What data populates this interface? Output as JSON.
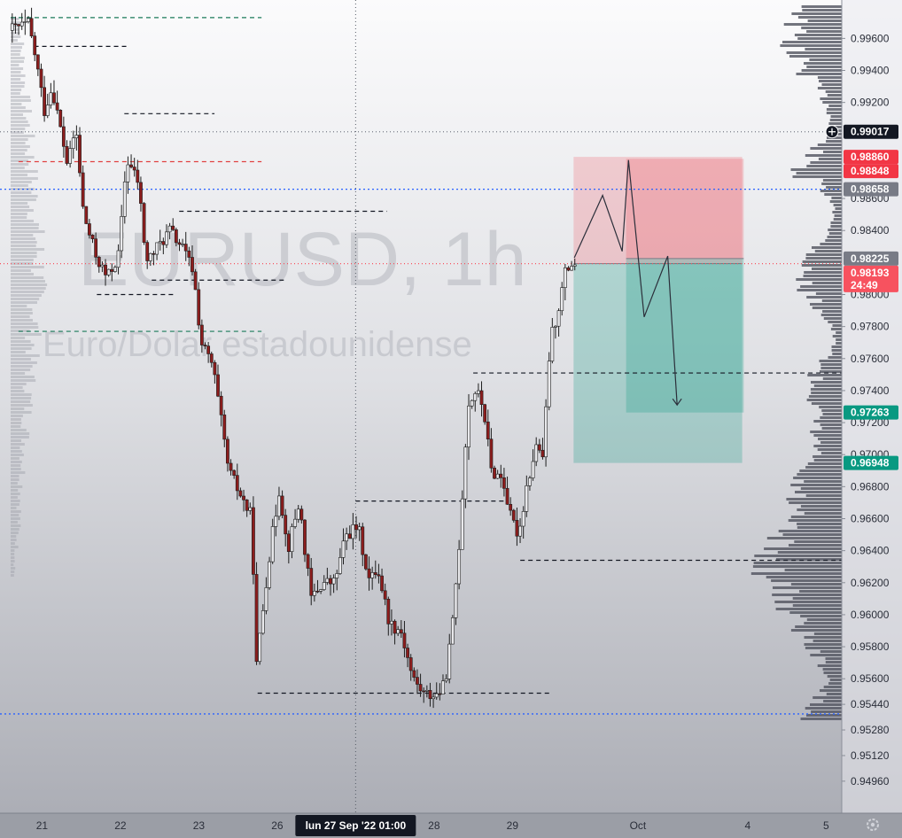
{
  "chart_data": {
    "type": "candlestick",
    "watermark": {
      "symbol": "EURUSD, 1h",
      "name": "Euro/Dolar estadounidense"
    },
    "y_axis": {
      "ylim": [
        0.948,
        0.999
      ],
      "ticks": [
        "0.99600",
        "0.99400",
        "0.99200",
        "0.98600",
        "0.98400",
        "0.98000",
        "0.97800",
        "0.97600",
        "0.97400",
        "0.97200",
        "0.97000",
        "0.96800",
        "0.96600",
        "0.96400",
        "0.96200",
        "0.96000",
        "0.95800",
        "0.95600",
        "0.95440",
        "0.95280",
        "0.95120",
        "0.94960"
      ]
    },
    "x_axis": {
      "labels": [
        {
          "label": "21",
          "t": 0.4
        },
        {
          "label": "22",
          "t": 1.4
        },
        {
          "label": "23",
          "t": 2.4
        },
        {
          "label": "26",
          "t": 3.4
        },
        {
          "label": "28",
          "t": 5.4
        },
        {
          "label": "29",
          "t": 6.4
        },
        {
          "label": "Oct",
          "t": 8.0
        },
        {
          "label": "4",
          "t": 9.4
        },
        {
          "label": "5",
          "t": 10.4
        }
      ],
      "crosshair_label": "lun 27 Sep '22   01:00",
      "crosshair_t": 4.4
    },
    "price_tags": [
      {
        "label": "0.99017",
        "value": 0.99017,
        "bg": "#131722",
        "fg": "#ffffff"
      },
      {
        "label": "0.98860",
        "value": 0.9886,
        "bg": "#f23645",
        "fg": "#ffffff"
      },
      {
        "label": "0.98848",
        "value": 0.98848,
        "bg": "#f23645",
        "fg": "#ffffff"
      },
      {
        "label": "0.98658",
        "value": 0.98658,
        "bg": "#787b86",
        "fg": "#ffffff"
      },
      {
        "label": "0.98225",
        "value": 0.98225,
        "bg": "#787b86",
        "fg": "#ffffff"
      },
      {
        "label": "0.98193",
        "value": 0.98193,
        "bg": "#f7525f",
        "fg": "#ffffff",
        "sub": "24:49"
      },
      {
        "label": "0.97263",
        "value": 0.97263,
        "bg": "#089981",
        "fg": "#ffffff"
      },
      {
        "label": "0.96948",
        "value": 0.96948,
        "bg": "#089981",
        "fg": "#ffffff"
      }
    ],
    "key_levels": [
      {
        "value": 0.9973,
        "t0": 0.0,
        "t1": 3.2,
        "color": "#1a7a5a",
        "dash": "5,4"
      },
      {
        "value": 0.9955,
        "t0": 0.3,
        "t1": 1.5,
        "color": "#131722",
        "dash": "5,4"
      },
      {
        "value": 0.9913,
        "t0": 1.45,
        "t1": 2.6,
        "color": "#131722",
        "dash": "5,4"
      },
      {
        "value": 0.9883,
        "t0": 0.1,
        "t1": 3.2,
        "color": "#e04040",
        "dash": "5,4"
      },
      {
        "value": 0.9852,
        "t0": 2.15,
        "t1": 4.8,
        "color": "#131722",
        "dash": "5,4"
      },
      {
        "value": 0.9809,
        "t0": 1.8,
        "t1": 3.5,
        "color": "#131722",
        "dash": "5,4"
      },
      {
        "value": 0.98,
        "t0": 1.1,
        "t1": 2.1,
        "color": "#131722",
        "dash": "5,4"
      },
      {
        "value": 0.9777,
        "t0": 0.1,
        "t1": 3.2,
        "color": "#1a7a5a",
        "dash": "5,4"
      },
      {
        "value": 0.9751,
        "t0": 5.9,
        "t1": 10.6,
        "color": "#131722",
        "dash": "5,4"
      },
      {
        "value": 0.9671,
        "t0": 4.4,
        "t1": 6.3,
        "color": "#131722",
        "dash": "5,4"
      },
      {
        "value": 0.9634,
        "t0": 6.5,
        "t1": 10.6,
        "color": "#131722",
        "dash": "5,4"
      },
      {
        "value": 0.9551,
        "t0": 3.15,
        "t1": 6.9,
        "color": "#131722",
        "dash": "5,4"
      }
    ],
    "horizontal_lines": [
      {
        "value": 0.98658,
        "color": "#2962ff",
        "dash": "2,3"
      },
      {
        "value": 0.9538,
        "color": "#2962ff",
        "dash": "2,3"
      },
      {
        "value": 0.99017,
        "color": "#787b86",
        "dash": "1,3"
      },
      {
        "value": 0.98193,
        "color": "#f7525f",
        "dash": "1,3"
      }
    ],
    "positions": [
      {
        "t0": 7.18,
        "t1": 9.33,
        "entry": 0.98193,
        "stop": 0.9886,
        "target": 0.96948
      },
      {
        "t0": 7.85,
        "t1": 9.35,
        "entry": 0.98225,
        "stop": 0.98848,
        "target": 0.97263
      }
    ],
    "path_projection": [
      {
        "t": 7.19,
        "v": 0.9823
      },
      {
        "t": 7.55,
        "v": 0.9862
      },
      {
        "t": 7.8,
        "v": 0.9827
      },
      {
        "t": 7.88,
        "v": 0.9884
      },
      {
        "t": 8.08,
        "v": 0.9786
      },
      {
        "t": 8.38,
        "v": 0.9824
      },
      {
        "t": 8.5,
        "v": 0.9731
      }
    ],
    "ohlc_anchors": [
      [
        0.0,
        0.9965
      ],
      [
        0.25,
        0.9969
      ],
      [
        0.35,
        0.9945
      ],
      [
        0.45,
        0.9915
      ],
      [
        0.55,
        0.993
      ],
      [
        0.65,
        0.9905
      ],
      [
        0.75,
        0.988
      ],
      [
        0.85,
        0.9905
      ],
      [
        0.95,
        0.985
      ],
      [
        1.1,
        0.9825
      ],
      [
        1.25,
        0.981
      ],
      [
        1.4,
        0.9825
      ],
      [
        1.5,
        0.9885
      ],
      [
        1.65,
        0.987
      ],
      [
        1.75,
        0.982
      ],
      [
        1.9,
        0.983
      ],
      [
        2.05,
        0.984
      ],
      [
        2.2,
        0.983
      ],
      [
        2.35,
        0.9815
      ],
      [
        2.45,
        0.977
      ],
      [
        2.6,
        0.9755
      ],
      [
        2.8,
        0.969
      ],
      [
        3.0,
        0.967
      ],
      [
        3.1,
        0.966
      ],
      [
        3.15,
        0.9565
      ],
      [
        3.3,
        0.963
      ],
      [
        3.45,
        0.968
      ],
      [
        3.55,
        0.964
      ],
      [
        3.7,
        0.967
      ],
      [
        3.85,
        0.961
      ],
      [
        4.0,
        0.962
      ],
      [
        4.15,
        0.962
      ],
      [
        4.3,
        0.965
      ],
      [
        4.45,
        0.9655
      ],
      [
        4.6,
        0.962
      ],
      [
        4.7,
        0.963
      ],
      [
        4.85,
        0.9595
      ],
      [
        5.0,
        0.959
      ],
      [
        5.15,
        0.956
      ],
      [
        5.3,
        0.955
      ],
      [
        5.45,
        0.955
      ],
      [
        5.55,
        0.9555
      ],
      [
        5.65,
        0.959
      ],
      [
        5.75,
        0.965
      ],
      [
        5.85,
        0.973
      ],
      [
        5.95,
        0.974
      ],
      [
        6.05,
        0.973
      ],
      [
        6.15,
        0.969
      ],
      [
        6.3,
        0.9685
      ],
      [
        6.4,
        0.966
      ],
      [
        6.5,
        0.965
      ],
      [
        6.6,
        0.968
      ],
      [
        6.75,
        0.971
      ],
      [
        6.8,
        0.969
      ],
      [
        6.9,
        0.977
      ],
      [
        7.0,
        0.979
      ],
      [
        7.1,
        0.9815
      ],
      [
        7.18,
        0.98193
      ]
    ],
    "volume_profile_note": "right-side volume profile histogram"
  }
}
